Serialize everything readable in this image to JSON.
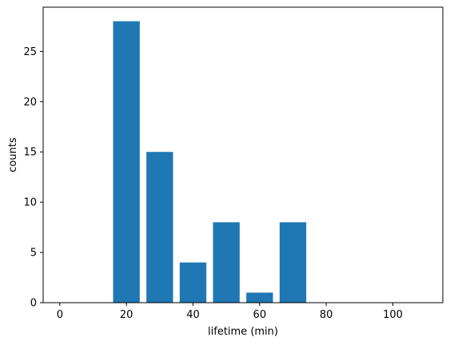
{
  "chart_data": {
    "type": "bar",
    "bars": [
      {
        "x": 0,
        "width": 8,
        "value": 0
      },
      {
        "x": 10,
        "width": 8,
        "value": 0
      },
      {
        "x": 20,
        "width": 8,
        "value": 28
      },
      {
        "x": 30,
        "width": 8,
        "value": 15
      },
      {
        "x": 40,
        "width": 8,
        "value": 4
      },
      {
        "x": 50,
        "width": 8,
        "value": 8
      },
      {
        "x": 60,
        "width": 8,
        "value": 1
      },
      {
        "x": 70,
        "width": 8,
        "value": 8
      },
      {
        "x": 80,
        "width": 8,
        "value": 0
      },
      {
        "x": 90,
        "width": 8,
        "value": 0
      },
      {
        "x": 100,
        "width": 8,
        "value": 0
      }
    ],
    "xlabel": "lifetime (min)",
    "ylabel": "counts",
    "xlim": [
      -5,
      115
    ],
    "ylim": [
      0,
      29.4
    ],
    "xticks": [
      0,
      20,
      40,
      60,
      80,
      100
    ],
    "yticks": [
      0,
      5,
      10,
      15,
      20,
      25
    ],
    "grid": false,
    "bar_color": "#1f77b4"
  }
}
